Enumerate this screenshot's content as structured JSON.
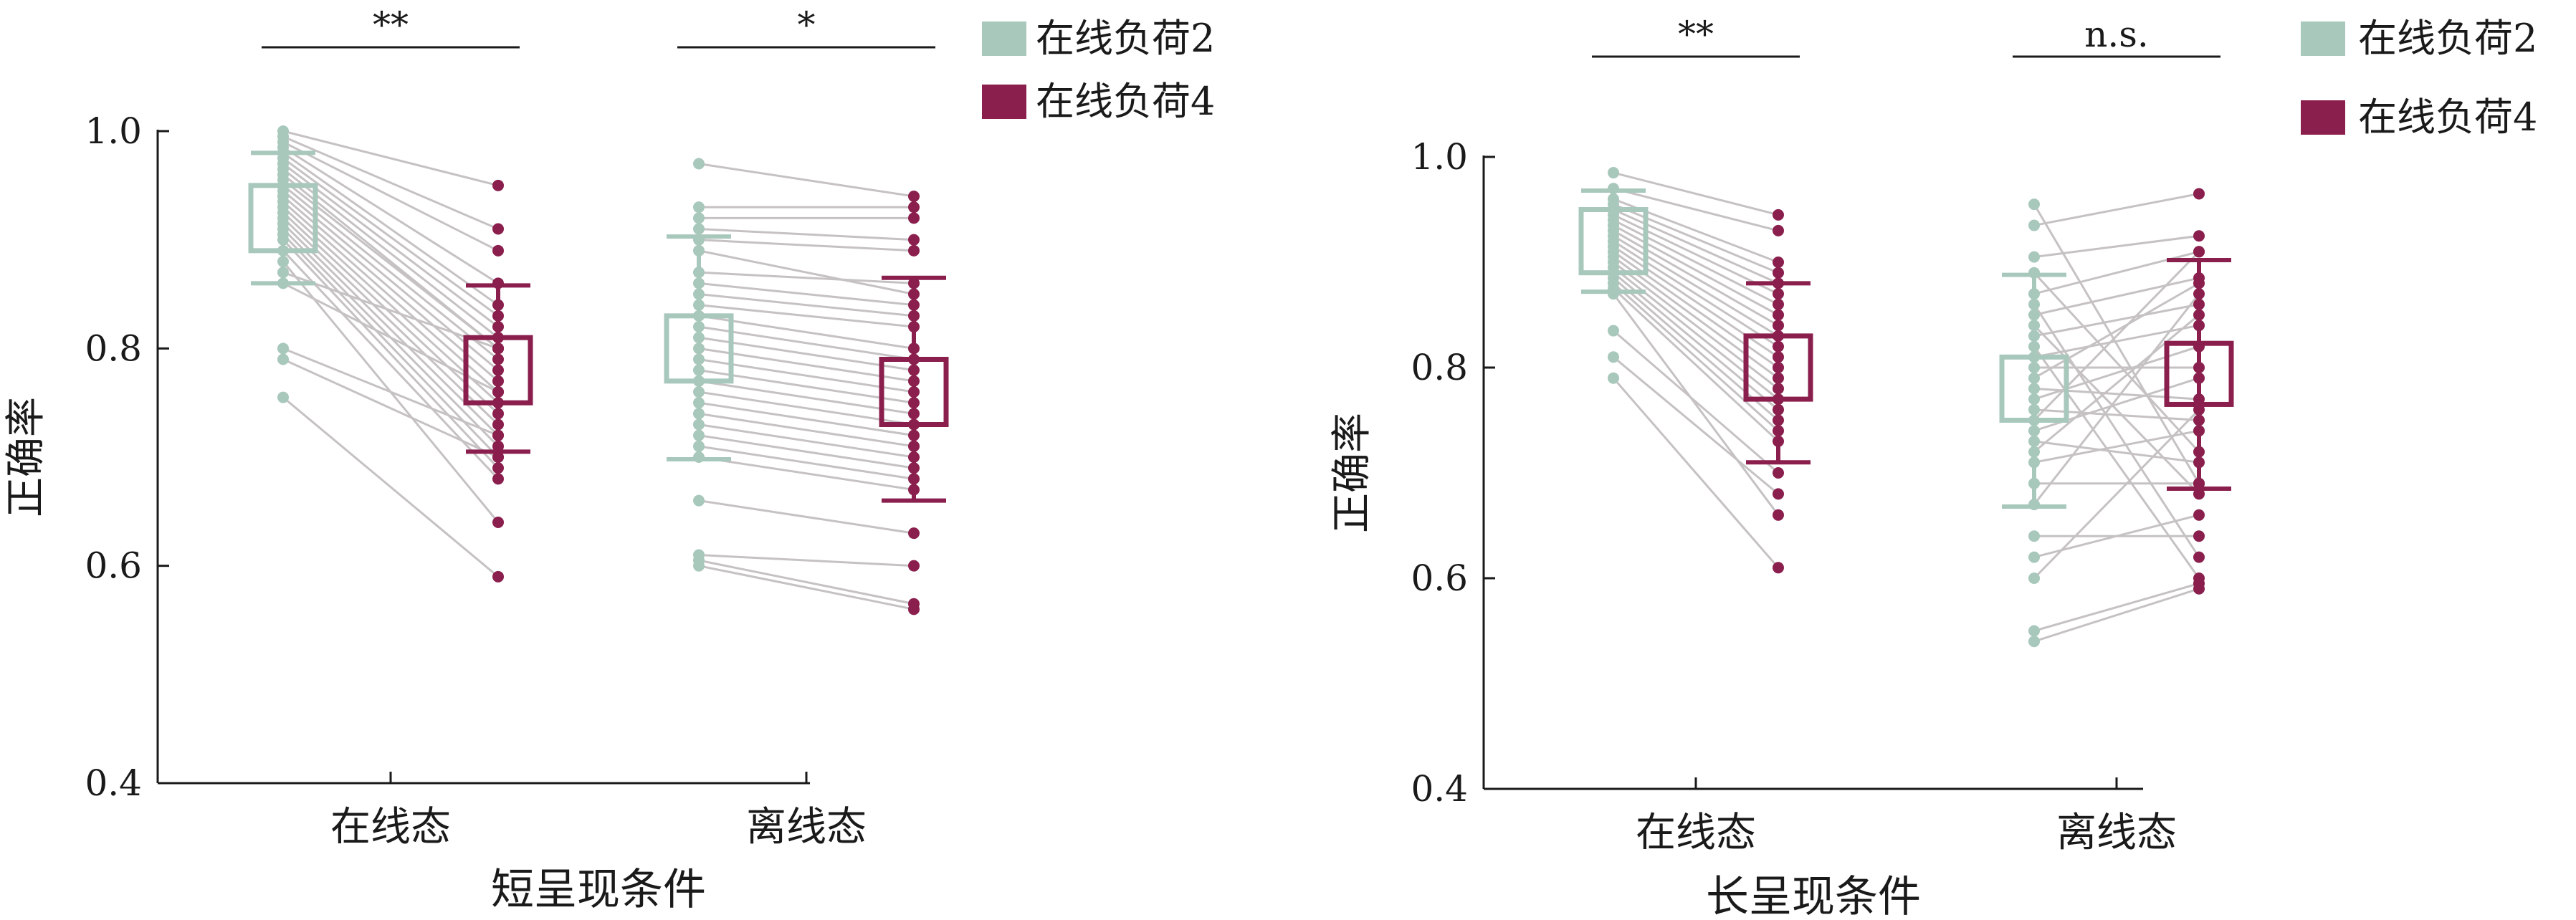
{
  "colors": {
    "load2": "#a8c8bc",
    "load4": "#8a1f4e",
    "line": "#c6c2c4",
    "axis": "#1a1a1a"
  },
  "chart_data": [
    {
      "type": "scatter",
      "title": "短呈现条件",
      "ylabel": "正确率",
      "ylim": [
        0.4,
        1.0
      ],
      "yticks": [
        "0.4",
        "0.6",
        "0.8",
        "1.0"
      ],
      "categories": [
        "在线态",
        "离线态"
      ],
      "legend": [
        "在线负荷2",
        "在线负荷4"
      ],
      "legend_position": "top-right",
      "significance": [
        "**",
        "*"
      ],
      "groups": [
        {
          "category": "在线态",
          "load2": {
            "mean": 0.92,
            "box": [
              0.89,
              0.95
            ],
            "err": [
              0.86,
              0.98
            ]
          },
          "load4": {
            "mean": 0.78,
            "box": [
              0.75,
              0.81
            ],
            "err": [
              0.705,
              0.858
            ]
          },
          "pairs": [
            [
              1.0,
              0.95
            ],
            [
              0.995,
              0.91
            ],
            [
              0.99,
              0.89
            ],
            [
              0.985,
              0.86
            ],
            [
              0.98,
              0.84
            ],
            [
              0.975,
              0.83
            ],
            [
              0.97,
              0.82
            ],
            [
              0.965,
              0.81
            ],
            [
              0.96,
              0.8
            ],
            [
              0.955,
              0.8
            ],
            [
              0.95,
              0.79
            ],
            [
              0.945,
              0.78
            ],
            [
              0.94,
              0.77
            ],
            [
              0.935,
              0.76
            ],
            [
              0.93,
              0.75
            ],
            [
              0.925,
              0.74
            ],
            [
              0.92,
              0.73
            ],
            [
              0.915,
              0.72
            ],
            [
              0.91,
              0.71
            ],
            [
              0.905,
              0.7
            ],
            [
              0.9,
              0.69
            ],
            [
              0.89,
              0.68
            ],
            [
              0.88,
              0.64
            ],
            [
              0.87,
              0.8
            ],
            [
              0.86,
              0.76
            ],
            [
              0.8,
              0.72
            ],
            [
              0.79,
              0.7
            ],
            [
              0.755,
              0.59
            ]
          ]
        },
        {
          "category": "离线态",
          "load2": {
            "mean": 0.8,
            "box": [
              0.77,
              0.83
            ],
            "err": [
              0.698,
              0.903
            ]
          },
          "load4": {
            "mean": 0.76,
            "box": [
              0.73,
              0.79
            ],
            "err": [
              0.66,
              0.865
            ]
          },
          "pairs": [
            [
              0.97,
              0.94
            ],
            [
              0.93,
              0.93
            ],
            [
              0.92,
              0.92
            ],
            [
              0.91,
              0.9
            ],
            [
              0.9,
              0.89
            ],
            [
              0.89,
              0.85
            ],
            [
              0.87,
              0.86
            ],
            [
              0.86,
              0.84
            ],
            [
              0.85,
              0.83
            ],
            [
              0.84,
              0.82
            ],
            [
              0.83,
              0.8
            ],
            [
              0.82,
              0.79
            ],
            [
              0.81,
              0.78
            ],
            [
              0.8,
              0.77
            ],
            [
              0.79,
              0.76
            ],
            [
              0.78,
              0.75
            ],
            [
              0.77,
              0.74
            ],
            [
              0.76,
              0.73
            ],
            [
              0.75,
              0.72
            ],
            [
              0.74,
              0.71
            ],
            [
              0.73,
              0.7
            ],
            [
              0.72,
              0.69
            ],
            [
              0.71,
              0.68
            ],
            [
              0.7,
              0.67
            ],
            [
              0.66,
              0.63
            ],
            [
              0.61,
              0.6
            ],
            [
              0.605,
              0.565
            ],
            [
              0.6,
              0.56
            ]
          ]
        }
      ]
    },
    {
      "type": "scatter",
      "title": "长呈现条件",
      "ylabel": "正确率",
      "ylim": [
        0.4,
        1.0
      ],
      "yticks": [
        "0.4",
        "0.6",
        "0.8",
        "1.0"
      ],
      "categories": [
        "在线态",
        "离线态"
      ],
      "legend": [
        "在线负荷2",
        "在线负荷4"
      ],
      "legend_position": "top-right",
      "significance": [
        "**",
        "n.s."
      ],
      "groups": [
        {
          "category": "在线态",
          "load2": {
            "mean": 0.92,
            "box": [
              0.89,
              0.95
            ],
            "err": [
              0.872,
              0.968
            ]
          },
          "load4": {
            "mean": 0.8,
            "box": [
              0.77,
              0.83
            ],
            "err": [
              0.71,
              0.88
            ]
          },
          "pairs": [
            [
              0.985,
              0.945
            ],
            [
              0.97,
              0.93
            ],
            [
              0.96,
              0.9
            ],
            [
              0.955,
              0.89
            ],
            [
              0.95,
              0.88
            ],
            [
              0.945,
              0.87
            ],
            [
              0.94,
              0.86
            ],
            [
              0.935,
              0.85
            ],
            [
              0.93,
              0.84
            ],
            [
              0.925,
              0.83
            ],
            [
              0.92,
              0.82
            ],
            [
              0.915,
              0.81
            ],
            [
              0.91,
              0.8
            ],
            [
              0.905,
              0.79
            ],
            [
              0.9,
              0.78
            ],
            [
              0.895,
              0.77
            ],
            [
              0.89,
              0.76
            ],
            [
              0.885,
              0.75
            ],
            [
              0.88,
              0.74
            ],
            [
              0.875,
              0.73
            ],
            [
              0.835,
              0.7
            ],
            [
              0.81,
              0.68
            ],
            [
              0.79,
              0.61
            ],
            [
              0.87,
              0.66
            ]
          ]
        },
        {
          "category": "离线态",
          "load2": {
            "mean": 0.78,
            "box": [
              0.75,
              0.81
            ],
            "err": [
              0.668,
              0.888
            ]
          },
          "load4": {
            "mean": 0.79,
            "box": [
              0.765,
              0.823
            ],
            "err": [
              0.685,
              0.902
            ]
          },
          "pairs": [
            [
              0.955,
              0.69
            ],
            [
              0.935,
              0.965
            ],
            [
              0.905,
              0.925
            ],
            [
              0.89,
              0.72
            ],
            [
              0.87,
              0.91
            ],
            [
              0.86,
              0.62
            ],
            [
              0.85,
              0.885
            ],
            [
              0.84,
              0.68
            ],
            [
              0.83,
              0.86
            ],
            [
              0.82,
              0.6
            ],
            [
              0.81,
              0.84
            ],
            [
              0.8,
              0.8
            ],
            [
              0.79,
              0.88
            ],
            [
              0.78,
              0.77
            ],
            [
              0.77,
              0.82
            ],
            [
              0.76,
              0.75
            ],
            [
              0.75,
              0.91
            ],
            [
              0.74,
              0.79
            ],
            [
              0.73,
              0.71
            ],
            [
              0.72,
              0.85
            ],
            [
              0.71,
              0.74
            ],
            [
              0.69,
              0.69
            ],
            [
              0.67,
              0.87
            ],
            [
              0.64,
              0.64
            ],
            [
              0.62,
              0.66
            ],
            [
              0.6,
              0.76
            ],
            [
              0.55,
              0.595
            ],
            [
              0.54,
              0.59
            ]
          ]
        }
      ]
    }
  ]
}
